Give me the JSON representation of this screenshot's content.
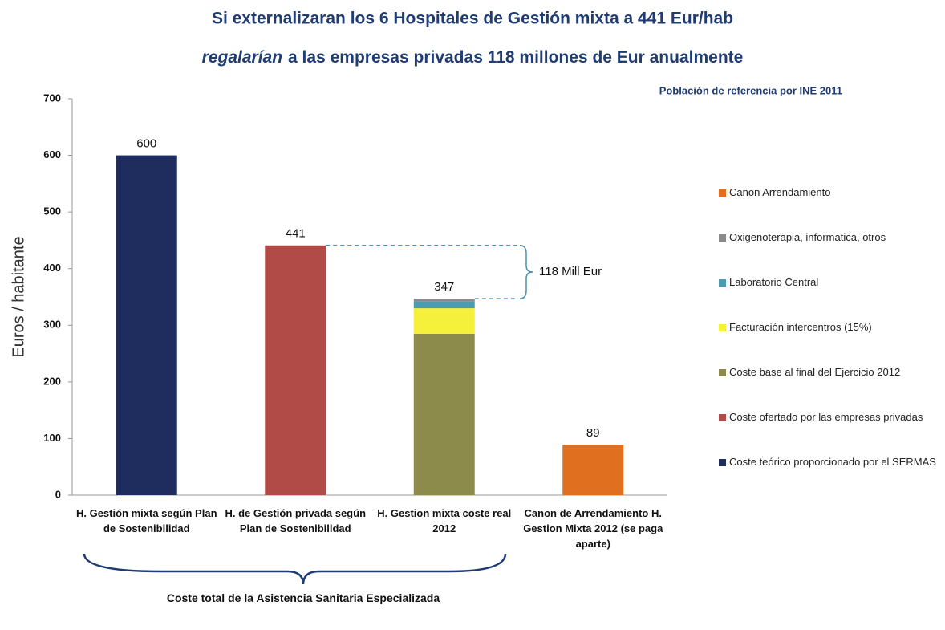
{
  "chart_data": {
    "type": "stacked_bar",
    "title": "Si externalizaran los 6 Hospitales de Gestión mixta a 441 Eur/hab",
    "subtitle_emphasis": "regalarían",
    "subtitle": "a las empresas privadas 118 millones de Eur anualmente",
    "note": "Población de referencia por INE 2011",
    "ylabel": "Euros / habitante",
    "categories": [
      "H. Gestión mixta según Plan de Sostenibilidad",
      "H. de Gestión privada según Plan de Sostenibilidad",
      "H. Gestion mixta coste real 2012",
      "Canon de Arrendamiento H. Gestion Mixta 2012 (se paga aparte)"
    ],
    "series": [
      {
        "name": "Coste teórico proporcionado por el SERMAS",
        "color": "#1f2d5e",
        "values": [
          600,
          null,
          null,
          null
        ]
      },
      {
        "name": "Coste ofertado por las empresas privadas",
        "color": "#b14b48",
        "values": [
          null,
          441,
          null,
          null
        ]
      },
      {
        "name": "Coste base al final del Ejercicio 2012",
        "color": "#8d8b4c",
        "values": [
          null,
          null,
          285,
          null
        ]
      },
      {
        "name": "Facturación intercentros (15%)",
        "color": "#f4f03c",
        "values": [
          null,
          null,
          45,
          null
        ]
      },
      {
        "name": "Laboratorio Central",
        "color": "#4b9bb1",
        "values": [
          null,
          null,
          12,
          null
        ]
      },
      {
        "name": "Oxigenoterapia, informatica, otros",
        "color": "#8a8a8a",
        "values": [
          null,
          null,
          5,
          null
        ]
      },
      {
        "name": "Canon Arrendamiento",
        "color": "#e0701f",
        "values": [
          null,
          null,
          null,
          89
        ]
      }
    ],
    "totals": [
      600,
      441,
      347,
      89
    ],
    "gap_annotation": "118 Mill Eur",
    "group_annotation": "Coste total de la Asistencia Sanitaria Especializada",
    "ylim": [
      0,
      700
    ],
    "yticks": [
      0,
      100,
      200,
      300,
      400,
      500,
      600,
      700
    ],
    "grid": false,
    "legend": "right"
  }
}
